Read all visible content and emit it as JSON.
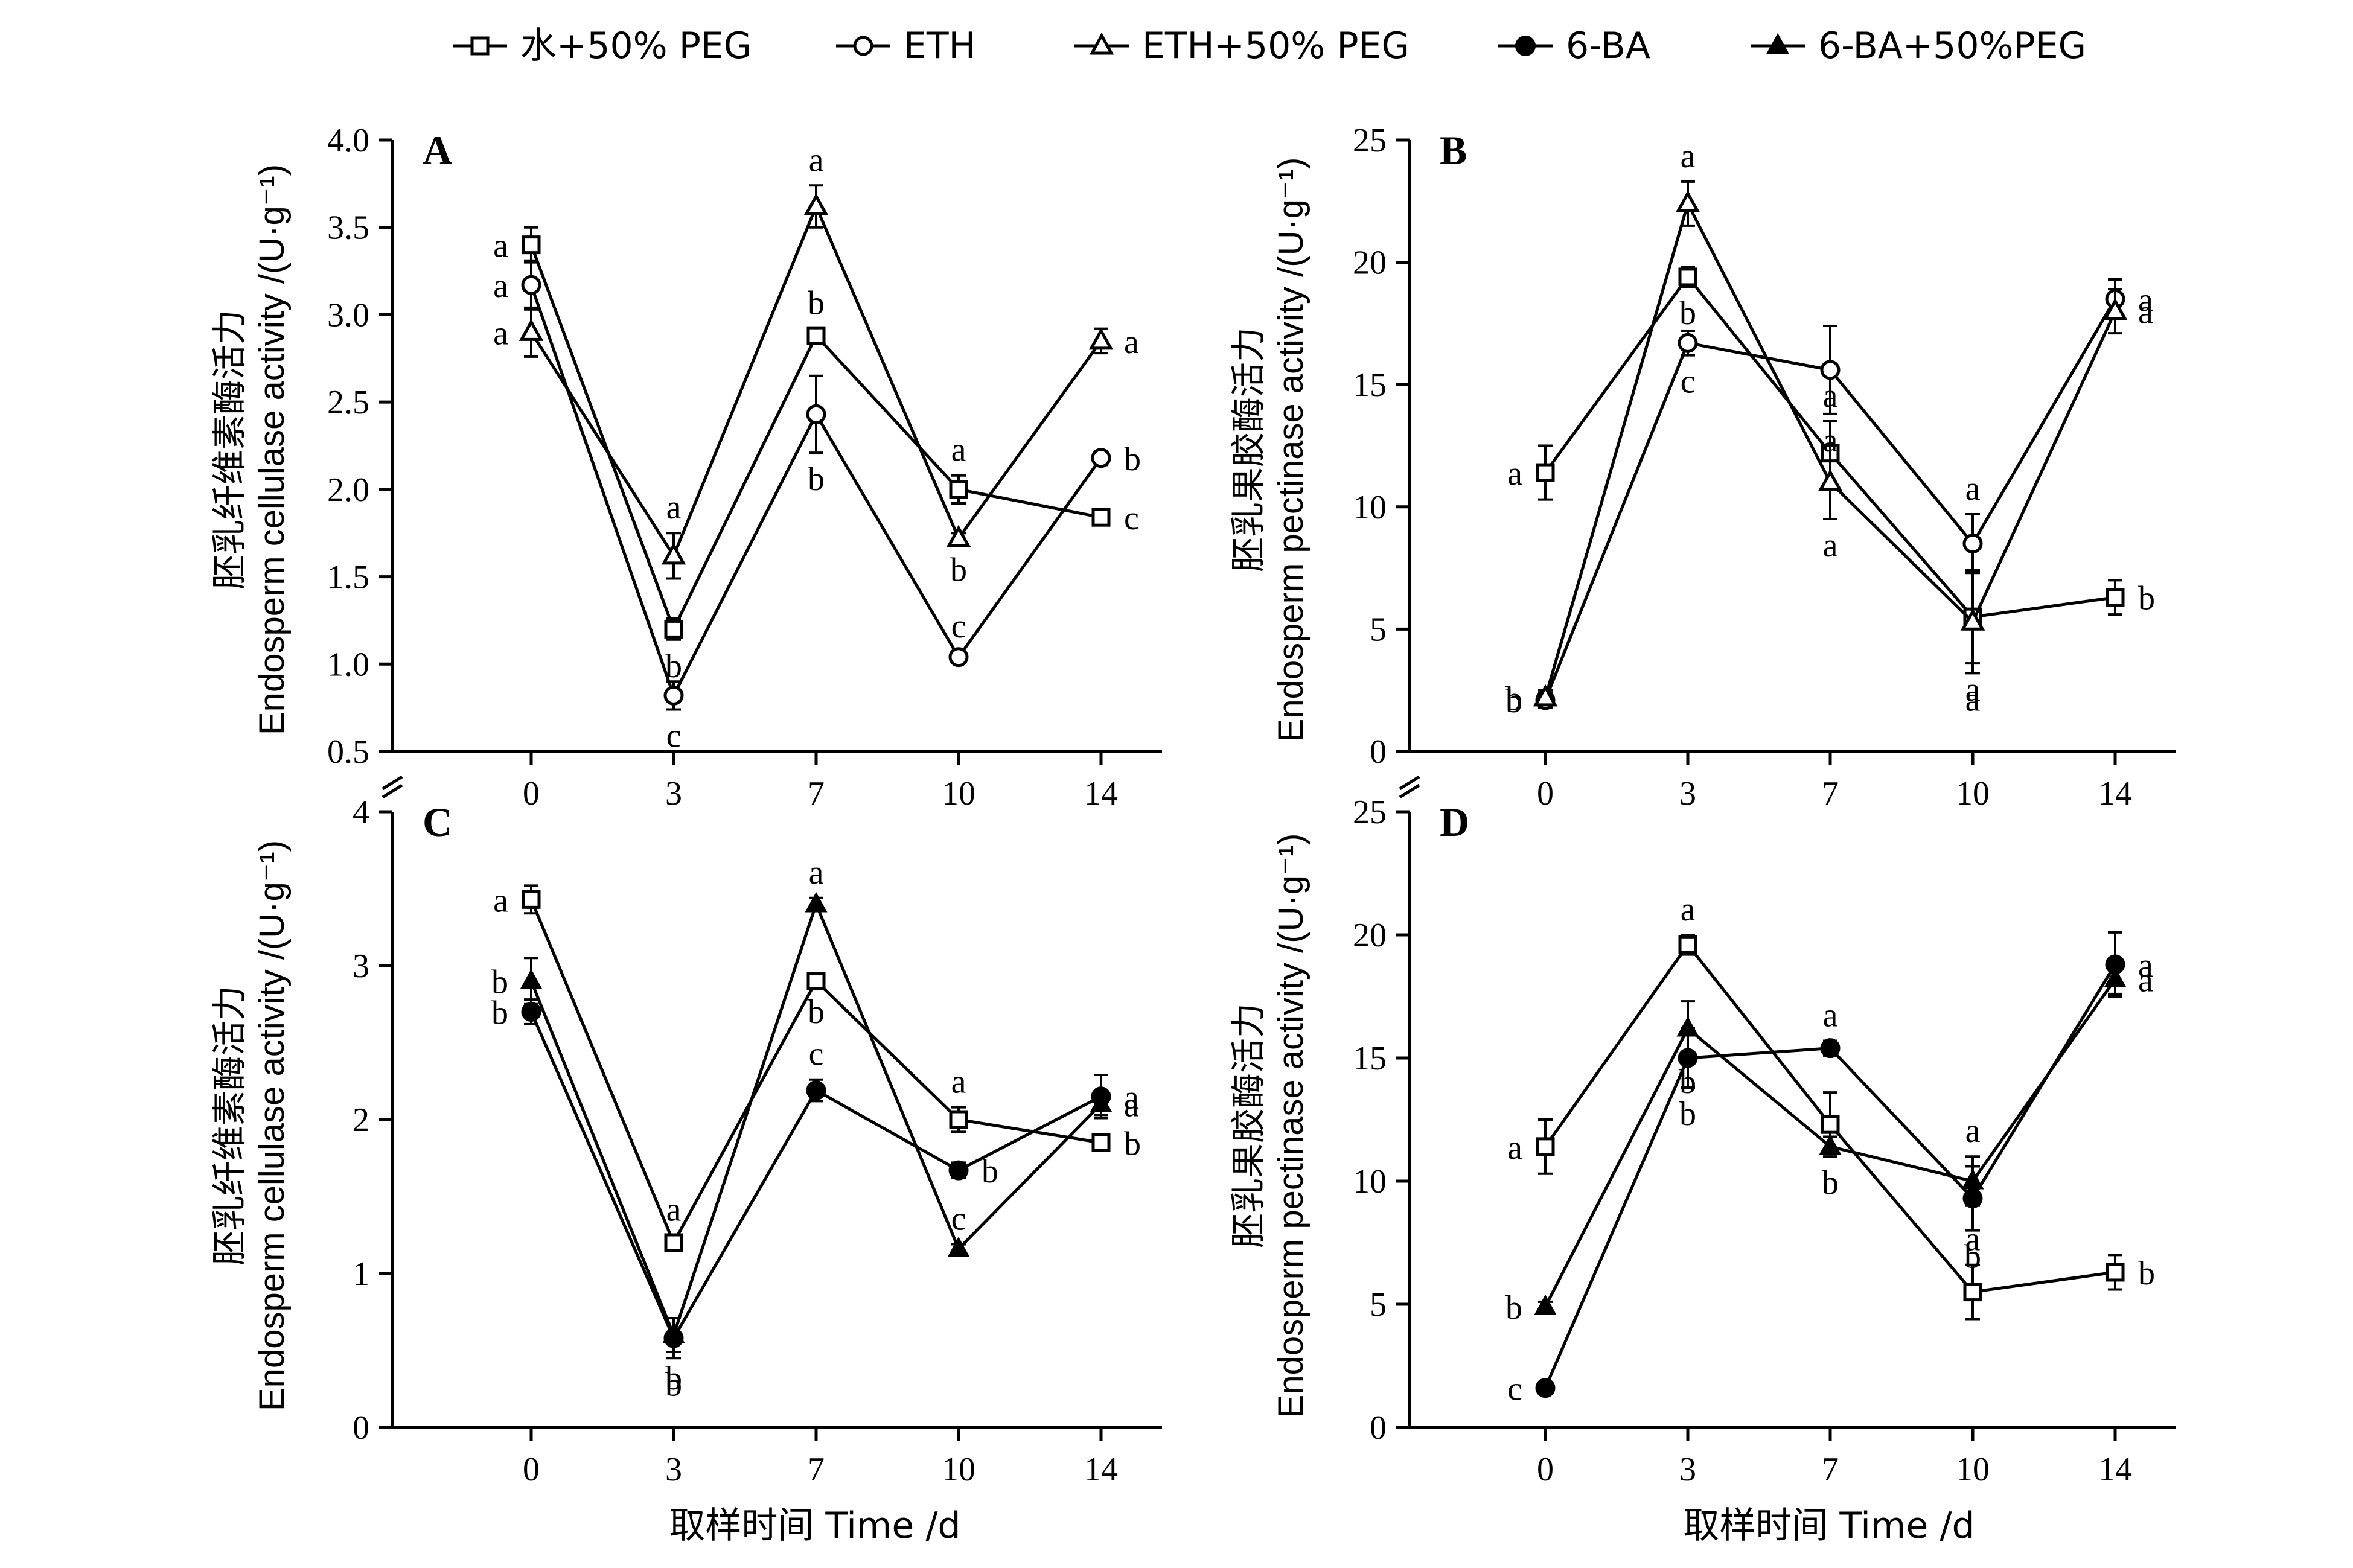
{
  "legend": [
    {
      "id": "s1",
      "label": "水+50% PEG",
      "marker": "square-open"
    },
    {
      "id": "s2",
      "label": "ETH",
      "marker": "circle-open"
    },
    {
      "id": "s3",
      "label": "ETH+50% PEG",
      "marker": "triangle-open"
    },
    {
      "id": "s4",
      "label": "6-BA",
      "marker": "circle-filled"
    },
    {
      "id": "s5",
      "label": "6-BA+50%PEG",
      "marker": "triangle-filled"
    }
  ],
  "xlabel": "取样时间 Time /d",
  "ylabels": {
    "cellulase_cn": "胚乳纤维素酶活力",
    "cellulase_en": "Endosperm cellulase activity /(U·g⁻¹)",
    "pectinase_cn": "胚乳果胶酶活力",
    "pectinase_en": "Endosperm pectinase activity /(U·g⁻¹)"
  },
  "colors": {
    "line": "#000000",
    "background": "#ffffff"
  },
  "chart_data": [
    {
      "panel": "A",
      "type": "line",
      "x": [
        0,
        3,
        7,
        10,
        14
      ],
      "xticks": [
        "0",
        "3",
        "7",
        "10",
        "14"
      ],
      "ylim": [
        0.5,
        4.0
      ],
      "yticks": [
        "0.5",
        "1.0",
        "1.5",
        "2.0",
        "2.5",
        "3.0",
        "3.5",
        "4.0"
      ],
      "series": [
        {
          "id": "s1",
          "values": [
            3.4,
            1.2,
            2.88,
            2.0,
            1.84
          ],
          "errors": [
            0.1,
            0.06,
            0.04,
            0.08,
            0.03
          ],
          "labels": [
            "a",
            "b",
            "b",
            "a",
            "c"
          ]
        },
        {
          "id": "s2",
          "values": [
            3.17,
            0.82,
            2.43,
            1.04,
            2.18
          ],
          "errors": [
            0.14,
            0.08,
            0.22,
            0.03,
            0.04
          ],
          "labels": [
            "a",
            "c",
            "b",
            "c",
            "b"
          ]
        },
        {
          "id": "s3",
          "values": [
            2.9,
            1.62,
            3.62,
            1.72,
            2.85
          ],
          "errors": [
            0.14,
            0.13,
            0.12,
            0.03,
            0.07
          ],
          "labels": [
            "a",
            "a",
            "a",
            "b",
            "a"
          ]
        }
      ]
    },
    {
      "panel": "B",
      "type": "line",
      "x": [
        0,
        3,
        7,
        10,
        14
      ],
      "xticks": [
        "0",
        "3",
        "7",
        "10",
        "14"
      ],
      "ylim": [
        0,
        25
      ],
      "yticks": [
        "0",
        "5",
        "10",
        "15",
        "20",
        "25"
      ],
      "series": [
        {
          "id": "s1",
          "values": [
            11.4,
            19.4,
            12.2,
            5.5,
            6.3
          ],
          "errors": [
            1.1,
            0.4,
            1.3,
            1.9,
            0.7
          ],
          "labels": [
            "a",
            "b",
            "a",
            "a",
            "b"
          ]
        },
        {
          "id": "s2",
          "values": [
            2.1,
            16.7,
            15.6,
            8.5,
            18.5
          ],
          "errors": [
            0.3,
            0.5,
            1.8,
            1.2,
            0.8
          ],
          "labels": [
            "b",
            "c",
            "a",
            "a",
            "a"
          ]
        },
        {
          "id": "s3",
          "values": [
            2.2,
            22.4,
            11.0,
            5.3,
            18.0
          ],
          "errors": [
            0.3,
            0.9,
            1.5,
            2.1,
            0.9
          ],
          "labels": [
            "b",
            "a",
            "a",
            "a",
            "a"
          ]
        }
      ]
    },
    {
      "panel": "C",
      "type": "line",
      "x": [
        0,
        3,
        7,
        10,
        14
      ],
      "xticks": [
        "0",
        "3",
        "7",
        "10",
        "14"
      ],
      "ylim": [
        0,
        4
      ],
      "yticks": [
        "0",
        "1",
        "2",
        "3",
        "4"
      ],
      "series": [
        {
          "id": "s1",
          "values": [
            3.43,
            1.2,
            2.9,
            2.0,
            1.85
          ],
          "errors": [
            0.09,
            0.05,
            0.03,
            0.08,
            0.03
          ],
          "labels": [
            "a",
            "a",
            "b",
            "a",
            "b"
          ]
        },
        {
          "id": "s4",
          "values": [
            2.7,
            0.58,
            2.19,
            1.67,
            2.15
          ],
          "errors": [
            0.08,
            0.13,
            0.07,
            0.05,
            0.14
          ],
          "labels": [
            "b",
            "b",
            "c",
            "b",
            "a"
          ]
        },
        {
          "id": "s5",
          "values": [
            2.9,
            0.6,
            3.4,
            1.16,
            2.1
          ],
          "errors": [
            0.15,
            0.11,
            0.04,
            0.03,
            0.07
          ],
          "labels": [
            "b",
            "b",
            "a",
            "c",
            "a"
          ]
        }
      ]
    },
    {
      "panel": "D",
      "type": "line",
      "x": [
        0,
        3,
        7,
        10,
        14
      ],
      "xticks": [
        "0",
        "3",
        "7",
        "10",
        "14"
      ],
      "ylim": [
        0,
        25
      ],
      "yticks": [
        "0",
        "5",
        "10",
        "15",
        "20",
        "25"
      ],
      "series": [
        {
          "id": "s1",
          "values": [
            11.4,
            19.6,
            12.3,
            5.5,
            6.3
          ],
          "errors": [
            1.1,
            0.4,
            1.3,
            1.1,
            0.7
          ],
          "labels": [
            "a",
            "a",
            "b",
            "a",
            "b"
          ]
        },
        {
          "id": "s4",
          "values": [
            1.6,
            15.0,
            15.4,
            9.3,
            18.8
          ],
          "errors": [
            0.2,
            1.2,
            0.3,
            1.3,
            1.3
          ],
          "labels": [
            "c",
            "b",
            "a",
            "b",
            "a"
          ]
        },
        {
          "id": "s5",
          "values": [
            4.9,
            16.2,
            11.4,
            10.0,
            18.2
          ],
          "errors": [
            0.2,
            1.1,
            0.4,
            1.0,
            0.6
          ],
          "labels": [
            "b",
            "b",
            "b",
            "a",
            "a"
          ]
        }
      ]
    }
  ]
}
